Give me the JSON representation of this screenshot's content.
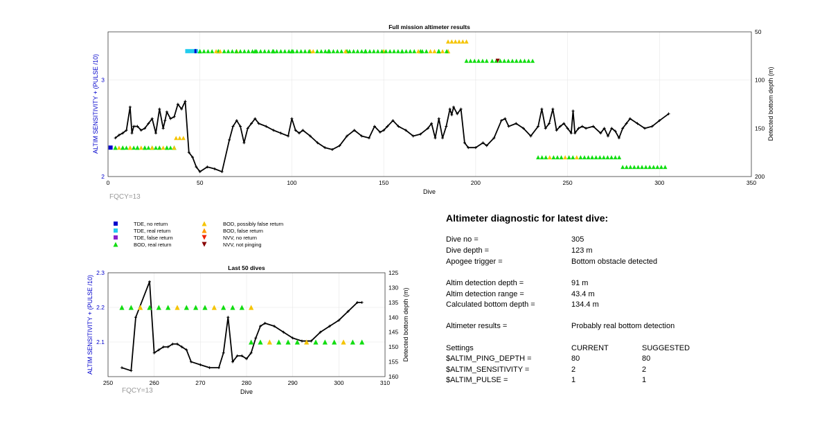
{
  "chart_data": [
    {
      "type": "line",
      "title": "Full mission altimeter results",
      "xlabel": "Dive",
      "ylabel_left": "ALTIM SENSITIVITY + (PULSE /10)",
      "ylabel_right": "Detected bottom depth (m)",
      "xlim": [
        0,
        350
      ],
      "ylim_left": [
        2,
        3.5
      ],
      "ylim_right": [
        50,
        200
      ],
      "right_axis_reversed": true,
      "x_ticks": [
        "0",
        "50",
        "100",
        "150",
        "200",
        "250",
        "300",
        "350"
      ],
      "left_ticks": [
        "2",
        "3"
      ],
      "right_ticks": [
        "50",
        "100",
        "150",
        "200"
      ],
      "annotation": "FQCY=13",
      "series": [
        {
          "name": "Detected bottom depth",
          "axis": "right",
          "x": [
            4,
            6,
            8,
            10,
            12,
            13,
            14,
            16,
            18,
            20,
            22,
            24,
            26,
            28,
            30,
            31,
            32,
            34,
            36,
            38,
            40,
            42,
            44,
            46,
            48,
            50,
            54,
            58,
            62,
            66,
            68,
            70,
            72,
            74,
            76,
            78,
            80,
            82,
            86,
            90,
            94,
            98,
            100,
            102,
            104,
            106,
            110,
            114,
            118,
            122,
            126,
            130,
            134,
            138,
            142,
            145,
            148,
            150,
            152,
            155,
            158,
            162,
            166,
            170,
            174,
            176,
            178,
            180,
            182,
            184,
            186,
            187,
            188,
            190,
            192,
            194,
            196,
            200,
            204,
            206,
            210,
            214,
            216,
            218,
            222,
            226,
            230,
            234,
            236,
            238,
            240,
            242,
            244,
            246,
            248,
            250,
            252,
            253,
            254,
            256,
            258,
            260,
            264,
            268,
            270,
            272,
            274,
            276,
            278,
            280,
            282,
            284,
            288,
            292,
            296,
            300,
            305
          ],
          "y": [
            160,
            157,
            155,
            152,
            128,
            155,
            148,
            148,
            152,
            150,
            145,
            140,
            155,
            130,
            150,
            142,
            133,
            140,
            138,
            125,
            130,
            122,
            175,
            180,
            190,
            195,
            190,
            192,
            195,
            162,
            148,
            142,
            148,
            165,
            150,
            145,
            140,
            145,
            148,
            152,
            155,
            158,
            140,
            152,
            155,
            152,
            158,
            165,
            170,
            172,
            168,
            158,
            152,
            158,
            160,
            148,
            154,
            152,
            148,
            142,
            148,
            152,
            158,
            156,
            150,
            145,
            160,
            140,
            160,
            148,
            130,
            136,
            128,
            135,
            130,
            165,
            170,
            170,
            165,
            168,
            160,
            142,
            140,
            148,
            145,
            150,
            158,
            148,
            130,
            150,
            145,
            130,
            152,
            148,
            145,
            150,
            155,
            132,
            155,
            150,
            148,
            150,
            148,
            155,
            150,
            158,
            150,
            153,
            160,
            150,
            145,
            140,
            145,
            150,
            148,
            142,
            135
          ]
        },
        {
          "name": "BOD, real return (early)",
          "axis": "left",
          "x": [
            4,
            8,
            12,
            16,
            20,
            24,
            28,
            32,
            36
          ],
          "y": [
            2.3,
            2.3,
            2.3,
            2.3,
            2.3,
            2.3,
            2.3,
            2.3,
            2.3
          ]
        },
        {
          "name": "BOD, real return (mid)",
          "axis": "left",
          "x": [
            50,
            60,
            70,
            80,
            90,
            100,
            110,
            120,
            130,
            140,
            150,
            160,
            170,
            180,
            185
          ],
          "y": [
            3.3,
            3.3,
            3.3,
            3.3,
            3.3,
            3.3,
            3.3,
            3.3,
            3.3,
            3.3,
            3.3,
            3.3,
            3.3,
            3.3,
            3.3
          ]
        }
      ]
    },
    {
      "type": "line",
      "title": "Last 50 dives",
      "xlabel": "Dive",
      "ylabel_left": "ALTIM SENSITIVITY + (PULSE /10)",
      "ylabel_right": "Detected bottom depth (m)",
      "xlim": [
        250,
        310
      ],
      "ylim_left": [
        2.0,
        2.3
      ],
      "ylim_right": [
        125,
        160
      ],
      "right_axis_reversed": true,
      "x_ticks": [
        "250",
        "260",
        "270",
        "280",
        "290",
        "300",
        "310"
      ],
      "left_ticks": [
        "2.1",
        "2.2",
        "2.3"
      ],
      "right_ticks": [
        "125",
        "130",
        "135",
        "140",
        "145",
        "150",
        "155",
        "160"
      ],
      "annotation": "FQCY=13",
      "series": [
        {
          "name": "Detected bottom depth",
          "axis": "right",
          "x": [
            253,
            255,
            256,
            259,
            260,
            261,
            262,
            263,
            264,
            265,
            266,
            267,
            268,
            270,
            272,
            274,
            275,
            276,
            277,
            278,
            279,
            280,
            281,
            282,
            283,
            284,
            286,
            288,
            290,
            292,
            294,
            296,
            298,
            300,
            302,
            304,
            305
          ],
          "y": [
            157,
            158,
            140,
            128,
            152,
            151,
            150,
            150,
            149,
            149,
            150,
            151,
            155,
            156,
            157,
            157,
            152,
            140,
            155,
            153,
            153,
            154,
            152,
            147,
            143,
            142,
            143,
            145,
            147,
            148,
            148,
            145,
            143,
            141,
            138,
            135,
            135
          ]
        },
        {
          "name": "BOD, real return (top row)",
          "axis": "left",
          "x": [
            253,
            255,
            257,
            259,
            261,
            263,
            265,
            267,
            269,
            271,
            273,
            275,
            277,
            279,
            281
          ],
          "y": [
            2.2,
            2.2,
            2.2,
            2.2,
            2.2,
            2.2,
            2.2,
            2.2,
            2.2,
            2.2,
            2.2,
            2.2,
            2.2,
            2.2,
            2.2
          ]
        },
        {
          "name": "BOD, real return (lower row)",
          "axis": "left",
          "x": [
            281,
            283,
            285,
            287,
            289,
            291,
            293,
            295,
            297,
            299,
            301,
            303,
            305
          ],
          "y": [
            2.1,
            2.1,
            2.1,
            2.1,
            2.1,
            2.1,
            2.1,
            2.1,
            2.1,
            2.1,
            2.1,
            2.1,
            2.1
          ]
        }
      ]
    }
  ],
  "legend": {
    "col1": [
      {
        "label": "TDE, no return",
        "color": "#0000cc",
        "shape": "square"
      },
      {
        "label": "TDE, real return",
        "color": "#22ccee",
        "shape": "square"
      },
      {
        "label": "TDE, false return",
        "color": "#8822cc",
        "shape": "square"
      },
      {
        "label": "BOD, real return",
        "color": "#11dd11",
        "shape": "triangle-up"
      }
    ],
    "col2": [
      {
        "label": "BOD, possibly false return",
        "color": "#f5c400",
        "shape": "triangle-up"
      },
      {
        "label": "BOD, false return",
        "color": "#ff9900",
        "shape": "triangle-up"
      },
      {
        "label": "NVV, no return",
        "color": "#ee2200",
        "shape": "triangle-down"
      },
      {
        "label": "NVV, not pinging",
        "color": "#880000",
        "shape": "triangle-down"
      }
    ]
  },
  "diagnostic": {
    "title": "Altimeter diagnostic for latest dive:",
    "rows": [
      {
        "label": "Dive no =",
        "value": "305"
      },
      {
        "label": "Dive depth =",
        "value": "123 m"
      },
      {
        "label": "Apogee trigger =",
        "value": "Bottom obstacle detected"
      },
      {
        "label": "Altim detection depth =",
        "value": "91 m"
      },
      {
        "label": "Altim detection range =",
        "value": "43.4 m"
      },
      {
        "label": "Calculated bottom depth =",
        "value": "134.4 m"
      },
      {
        "label": "Altimeter results =",
        "value": "Probably real bottom detection"
      }
    ],
    "settings": {
      "header": [
        "Settings",
        "CURRENT",
        "SUGGESTED"
      ],
      "rows": [
        [
          "$ALTIM_PING_DEPTH =",
          "80",
          "80"
        ],
        [
          "$ALTIM_SENSITIVITY =",
          "2",
          "2"
        ],
        [
          "$ALTIM_PULSE =",
          "1",
          "1"
        ]
      ]
    }
  }
}
